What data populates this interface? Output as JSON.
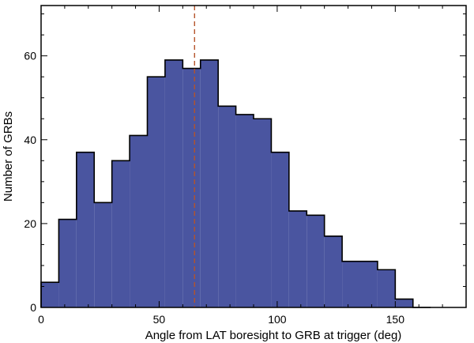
{
  "chart_data": {
    "type": "bar",
    "bin_width": 7.5,
    "bin_starts": [
      0,
      7.5,
      15,
      22.5,
      30,
      37.5,
      45,
      52.5,
      60,
      67.5,
      75,
      82.5,
      90,
      97.5,
      105,
      112.5,
      120,
      127.5,
      135,
      142.5,
      150,
      157.5
    ],
    "values": [
      6,
      21,
      37,
      25,
      35,
      41,
      55,
      59,
      57,
      59,
      48,
      46,
      45,
      37,
      23,
      22,
      17,
      11,
      11,
      9,
      2,
      0
    ],
    "xlabel": "Angle from LAT boresight to GRB at trigger (deg)",
    "ylabel": "Number of GRBs",
    "xlim": [
      0,
      180
    ],
    "ylim": [
      0,
      72
    ],
    "x_ticks": [
      0,
      50,
      100,
      150
    ],
    "y_ticks": [
      0,
      20,
      40,
      60
    ],
    "reference_line": {
      "x": 65,
      "style": "dashed",
      "color": "#b5532a"
    },
    "fill_color": "#4a55a0",
    "grid": false
  }
}
